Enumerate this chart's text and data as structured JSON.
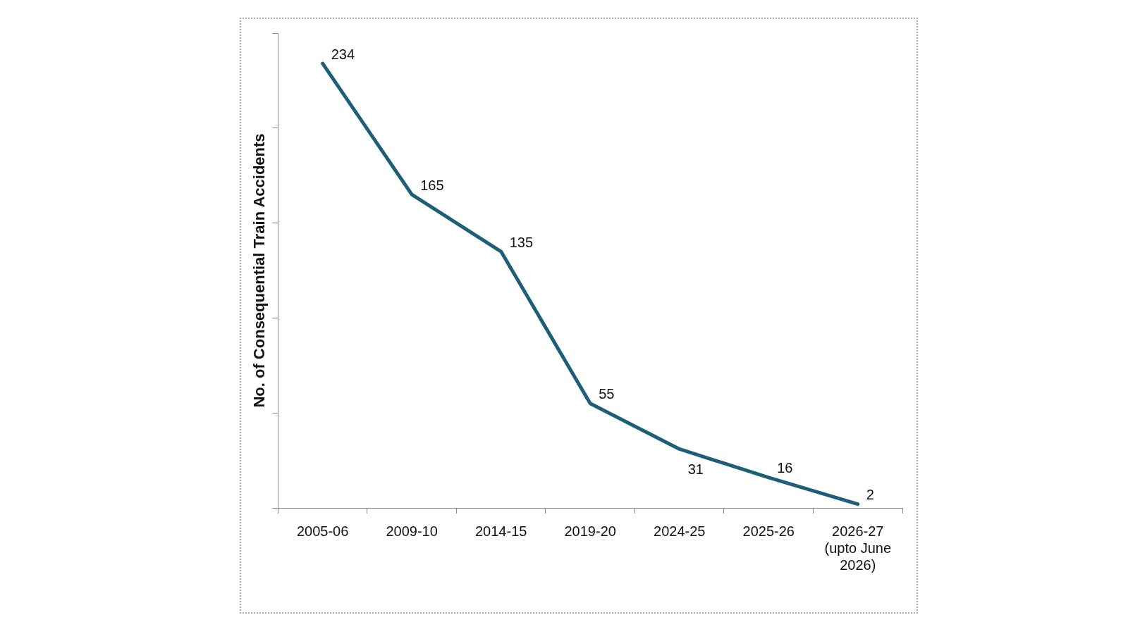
{
  "chart_data": {
    "type": "line",
    "ylabel": "No. of Consequential Train Accidents",
    "categories": [
      "2005-06",
      "2009-10",
      "2014-15",
      "2019-20",
      "2024-25",
      "2025-26",
      "2026-27 (upto June 2026)"
    ],
    "series": [
      {
        "color": "#1d5f78",
        "values": [
          234,
          165,
          135,
          55,
          31,
          16,
          2
        ]
      }
    ],
    "ylim": [
      0,
      250
    ],
    "yticks": [
      {
        "value": 0,
        "label": null
      },
      {
        "value": 50,
        "label": null
      },
      {
        "value": 100,
        "label": null
      },
      {
        "value": 150,
        "label": null
      },
      {
        "value": 200,
        "label": null
      },
      {
        "value": 250,
        "label": null
      }
    ],
    "tick_labels": "x",
    "data_labels": true,
    "grid": false,
    "legend": false,
    "marker": "none",
    "line_style": "solid"
  }
}
